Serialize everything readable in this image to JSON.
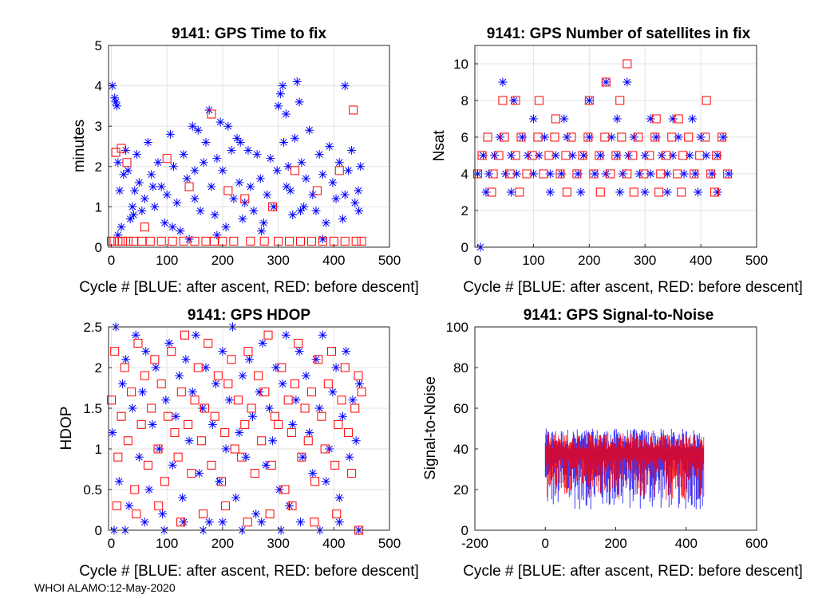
{
  "figure": {
    "footer": "WHOI ALAMO:12-May-2020",
    "colors": {
      "blue": "#0000ff",
      "red": "#ff0000",
      "grid": "#e3e3e3",
      "axis": "#262626"
    }
  },
  "chart_data": [
    {
      "id": "ttf",
      "type": "scatter",
      "title": "9141: GPS Time to fix",
      "xlabel": "Cycle #  [BLUE: after ascent, RED: before descent]",
      "ylabel": "minutes",
      "xlim": [
        -5,
        500
      ],
      "ylim": [
        0,
        5
      ],
      "xticks": [
        0,
        100,
        200,
        300,
        400,
        500
      ],
      "yticks": [
        0,
        1,
        2,
        3,
        4,
        5
      ],
      "grid": true,
      "series": [
        {
          "name": "after ascent",
          "color": "blue",
          "marker": "asterisk",
          "x": [
            2,
            6,
            8,
            10,
            12,
            15,
            18,
            22,
            26,
            30,
            34,
            38,
            42,
            46,
            50,
            55,
            60,
            66,
            72,
            78,
            84,
            90,
            96,
            100,
            106,
            112,
            118,
            124,
            130,
            136,
            140,
            146,
            150,
            156,
            160,
            166,
            170,
            176,
            180,
            186,
            190,
            196,
            200,
            206,
            210,
            216,
            220,
            226,
            230,
            236,
            240,
            246,
            250,
            256,
            262,
            268,
            274,
            280,
            286,
            292,
            298,
            300,
            304,
            308,
            310,
            314,
            318,
            322,
            326,
            330,
            334,
            338,
            342,
            346,
            350,
            356,
            362,
            368,
            374,
            380,
            386,
            392,
            398,
            404,
            410,
            416,
            420,
            426,
            432,
            438,
            444,
            448,
            12,
            40,
            75,
            110,
            150,
            190,
            232,
            270,
            315,
            340,
            380,
            420,
            445
          ],
          "y": [
            4.0,
            3.7,
            3.6,
            3.5,
            2.1,
            1.4,
            0.5,
            1.8,
            2.4,
            1.9,
            0.7,
            1.0,
            1.4,
            2.3,
            1.6,
            0.9,
            1.2,
            2.6,
            1.8,
            1.0,
            2.1,
            1.5,
            0.6,
            1.3,
            2.8,
            2.0,
            1.1,
            0.4,
            2.3,
            1.7,
            0.2,
            3.0,
            1.9,
            2.9,
            0.9,
            2.1,
            2.6,
            3.4,
            1.5,
            0.8,
            2.2,
            3.1,
            1.9,
            0.5,
            3.0,
            2.4,
            1.2,
            2.7,
            1.6,
            0.7,
            1.1,
            2.4,
            1.5,
            0.9,
            2.3,
            1.7,
            0.6,
            1.3,
            2.2,
            1.0,
            1.9,
            3.5,
            3.8,
            4.0,
            2.6,
            3.3,
            2.0,
            1.4,
            0.8,
            2.7,
            4.1,
            3.6,
            2.1,
            1.0,
            1.7,
            2.9,
            1.3,
            0.9,
            2.3,
            1.8,
            0.6,
            2.5,
            1.6,
            1.2,
            2.1,
            0.7,
            4.0,
            1.9,
            2.4,
            1.1,
            1.4,
            2.0,
            0.3,
            0.8,
            1.5,
            0.5,
            1.2,
            0.3,
            2.6,
            0.4,
            1.5,
            0.9,
            0.2,
            1.3,
            0.9
          ],
          "errorbars": false
        },
        {
          "name": "before descent",
          "color": "red",
          "marker": "square",
          "x": [
            0,
            5,
            12,
            20,
            30,
            40,
            55,
            70,
            90,
            110,
            130,
            150,
            170,
            185,
            200,
            220,
            250,
            275,
            300,
            320,
            340,
            360,
            380,
            400,
            420,
            440,
            450,
            8,
            18,
            28,
            60,
            100,
            140,
            180,
            210,
            240,
            290,
            330,
            370,
            410,
            435
          ],
          "y": [
            0.15,
            0.15,
            0.15,
            0.15,
            0.15,
            0.15,
            0.15,
            0.15,
            0.15,
            0.15,
            0.15,
            0.15,
            0.15,
            0.15,
            0.15,
            0.15,
            0.15,
            0.15,
            0.15,
            0.15,
            0.15,
            0.15,
            0.15,
            0.15,
            0.15,
            0.15,
            0.15,
            2.35,
            2.45,
            2.1,
            0.5,
            2.2,
            1.5,
            3.3,
            1.4,
            1.2,
            1.0,
            1.9,
            1.4,
            1.9,
            3.4
          ],
          "errorbars": false
        }
      ]
    },
    {
      "id": "nsat",
      "type": "scatter",
      "title": "9141: GPS Number of satellites in fix",
      "xlabel": "Cycle #  [BLUE: after ascent, RED: before descent]",
      "ylabel": "Nsat",
      "xlim": [
        -5,
        500
      ],
      "ylim": [
        0,
        11
      ],
      "xticks": [
        0,
        100,
        200,
        300,
        400,
        500
      ],
      "yticks": [
        0,
        2,
        4,
        6,
        8,
        10
      ],
      "grid": true,
      "series": [
        {
          "name": "after ascent",
          "color": "blue",
          "marker": "asterisk",
          "x": [
            0,
            10,
            20,
            30,
            40,
            50,
            60,
            70,
            80,
            90,
            100,
            110,
            120,
            130,
            140,
            150,
            160,
            170,
            180,
            190,
            200,
            210,
            220,
            230,
            240,
            250,
            260,
            270,
            280,
            290,
            300,
            310,
            320,
            330,
            340,
            350,
            360,
            370,
            380,
            390,
            400,
            410,
            420,
            430,
            440,
            450,
            45,
            65,
            100,
            155,
            200,
            230,
            250,
            268,
            310,
            350,
            385,
            15,
            60,
            130,
            185,
            255,
            300,
            340,
            395,
            430,
            5
          ],
          "y": [
            4,
            5,
            4,
            5,
            6,
            4,
            5,
            4,
            6,
            5,
            4,
            5,
            6,
            4,
            5,
            4,
            6,
            5,
            4,
            5,
            6,
            4,
            5,
            4,
            6,
            5,
            4,
            5,
            6,
            4,
            5,
            4,
            6,
            5,
            4,
            5,
            6,
            4,
            5,
            4,
            6,
            5,
            4,
            5,
            6,
            4,
            9,
            8,
            7,
            7,
            8,
            9,
            7,
            9,
            7,
            7,
            7,
            3,
            3,
            3,
            3,
            3,
            3,
            3,
            3,
            3,
            0
          ],
          "errorbars": false
        },
        {
          "name": "before descent",
          "color": "red",
          "marker": "square",
          "x": [
            0,
            8,
            18,
            28,
            38,
            48,
            58,
            68,
            78,
            88,
            98,
            108,
            118,
            128,
            138,
            148,
            158,
            168,
            178,
            188,
            198,
            208,
            218,
            228,
            238,
            248,
            258,
            268,
            278,
            288,
            298,
            308,
            318,
            328,
            338,
            348,
            358,
            368,
            378,
            388,
            398,
            408,
            418,
            428,
            438,
            448,
            45,
            68,
            110,
            140,
            200,
            230,
            255,
            268,
            320,
            360,
            410,
            25,
            75,
            160,
            220,
            280,
            325,
            365,
            425
          ],
          "y": [
            4,
            5,
            6,
            4,
            5,
            6,
            4,
            5,
            6,
            4,
            5,
            6,
            4,
            5,
            6,
            4,
            5,
            6,
            4,
            5,
            6,
            4,
            5,
            6,
            4,
            5,
            6,
            4,
            5,
            6,
            4,
            5,
            6,
            4,
            5,
            6,
            4,
            5,
            6,
            4,
            5,
            6,
            4,
            5,
            6,
            4,
            8,
            8,
            8,
            7,
            8,
            9,
            8,
            10,
            7,
            7,
            8,
            3,
            3,
            3,
            3,
            3,
            3,
            3,
            3
          ],
          "errorbars": false
        }
      ]
    },
    {
      "id": "hdop",
      "type": "scatter",
      "title": "9141: GPS HDOP",
      "xlabel": "Cycle #  [BLUE: after ascent, RED: before descent]",
      "ylabel": "HDOP",
      "xlim": [
        -5,
        500
      ],
      "ylim": [
        0,
        2.5
      ],
      "xticks": [
        0,
        100,
        200,
        300,
        400,
        500
      ],
      "yticks": [
        0,
        0.5,
        1,
        1.5,
        2,
        2.5
      ],
      "grid": true,
      "series": [
        {
          "name": "after ascent",
          "color": "blue",
          "marker": "asterisk",
          "x": [
            2,
            8,
            14,
            20,
            26,
            32,
            38,
            44,
            50,
            56,
            62,
            68,
            74,
            80,
            86,
            92,
            98,
            104,
            110,
            116,
            122,
            128,
            134,
            140,
            146,
            152,
            158,
            164,
            170,
            176,
            182,
            188,
            194,
            200,
            206,
            212,
            218,
            224,
            230,
            236,
            242,
            248,
            254,
            260,
            266,
            272,
            278,
            284,
            290,
            296,
            302,
            308,
            314,
            320,
            326,
            332,
            338,
            344,
            350,
            356,
            362,
            368,
            374,
            380,
            386,
            392,
            398,
            404,
            410,
            416,
            422,
            428,
            434,
            440,
            446,
            5,
            25,
            60,
            95,
            130,
            165,
            200,
            235,
            270,
            305,
            340,
            375,
            410,
            445
          ],
          "y": [
            1.2,
            2.5,
            0.6,
            1.8,
            2.1,
            0.3,
            1.5,
            2.4,
            0.9,
            1.7,
            2.2,
            0.5,
            1.3,
            2.0,
            1.0,
            0.2,
            1.6,
            2.3,
            0.8,
            1.4,
            1.9,
            0.4,
            2.1,
            1.1,
            1.7,
            2.4,
            0.7,
            1.5,
            2.0,
            0.1,
            1.3,
            1.8,
            0.6,
            2.2,
            1.0,
            1.6,
            2.5,
            0.4,
            1.2,
            1.9,
            0.9,
            2.1,
            1.4,
            0.2,
            1.7,
            2.3,
            0.8,
            1.5,
            1.1,
            2.0,
            0.5,
            1.8,
            2.4,
            0.3,
            1.3,
            1.6,
            2.2,
            0.9,
            1.9,
            1.2,
            0.7,
            2.1,
            1.5,
            2.4,
            0.6,
            1.0,
            1.7,
            2.0,
            0.4,
            1.4,
            2.2,
            0.9,
            1.6,
            1.1,
            1.8,
            0.0,
            0.0,
            0.1,
            0.0,
            0.1,
            0.0,
            0.1,
            0.0,
            0.1,
            0.0,
            0.1,
            0.0,
            0.1,
            0.0
          ],
          "errorbars": false
        },
        {
          "name": "before descent",
          "color": "red",
          "marker": "square",
          "x": [
            0,
            6,
            12,
            18,
            24,
            30,
            36,
            42,
            48,
            54,
            60,
            66,
            72,
            78,
            84,
            90,
            96,
            102,
            108,
            114,
            120,
            126,
            132,
            138,
            144,
            150,
            156,
            162,
            168,
            174,
            180,
            186,
            192,
            198,
            204,
            210,
            216,
            222,
            228,
            234,
            240,
            246,
            252,
            258,
            264,
            270,
            276,
            282,
            288,
            294,
            300,
            306,
            312,
            318,
            324,
            330,
            336,
            342,
            348,
            354,
            360,
            366,
            372,
            378,
            384,
            390,
            396,
            402,
            408,
            414,
            420,
            426,
            432,
            438,
            444,
            450,
            10,
            45,
            85,
            125,
            165,
            205,
            245,
            285,
            325,
            365,
            405,
            445
          ],
          "y": [
            1.6,
            2.2,
            0.9,
            1.4,
            2.0,
            1.1,
            1.7,
            0.5,
            2.3,
            1.3,
            1.9,
            0.8,
            1.5,
            2.1,
            1.0,
            1.8,
            0.6,
            1.4,
            2.2,
            1.2,
            0.9,
            1.7,
            2.4,
            1.3,
            0.7,
            1.6,
            2.0,
            1.1,
            1.5,
            2.3,
            0.8,
            1.4,
            1.9,
            0.6,
            1.2,
            1.8,
            2.1,
            1.0,
            1.6,
            0.9,
            1.3,
            2.2,
            1.5,
            0.7,
            1.9,
            1.1,
            1.7,
            2.4,
            0.8,
            1.4,
            1.3,
            2.0,
            0.5,
            1.6,
            1.2,
            1.8,
            2.3,
            0.9,
            1.5,
            1.1,
            1.7,
            0.6,
            2.1,
            1.4,
            1.0,
            1.8,
            2.2,
            0.8,
            1.3,
            1.6,
            2.0,
            1.2,
            0.7,
            1.5,
            1.9,
            1.7,
            0.3,
            0.2,
            0.3,
            0.1,
            0.2,
            0.3,
            0.1,
            0.2,
            0.3,
            0.1,
            0.2,
            0.0
          ],
          "errorbars": false
        }
      ]
    },
    {
      "id": "snr",
      "type": "line",
      "title": "9141: GPS Signal-to-Noise",
      "xlabel": "Cycle #  [BLUE: after ascent, RED: before descent]",
      "ylabel": "Signal-to-Noise",
      "xlim": [
        -200,
        600
      ],
      "ylim": [
        0,
        100
      ],
      "xticks": [
        -200,
        0,
        200,
        400,
        600
      ],
      "yticks": [
        0,
        20,
        40,
        60,
        80,
        100
      ],
      "grid": false,
      "series": [
        {
          "name": "after ascent",
          "color": "blue",
          "style": "range-bars",
          "x_start": 0,
          "x_end": 450,
          "min_range": [
            10,
            35
          ],
          "max_range": [
            40,
            50
          ]
        },
        {
          "name": "before descent",
          "color": "red",
          "style": "range-bars",
          "x_start": 0,
          "x_end": 450,
          "min_range": [
            15,
            36
          ],
          "max_range": [
            40,
            48
          ]
        }
      ]
    }
  ]
}
